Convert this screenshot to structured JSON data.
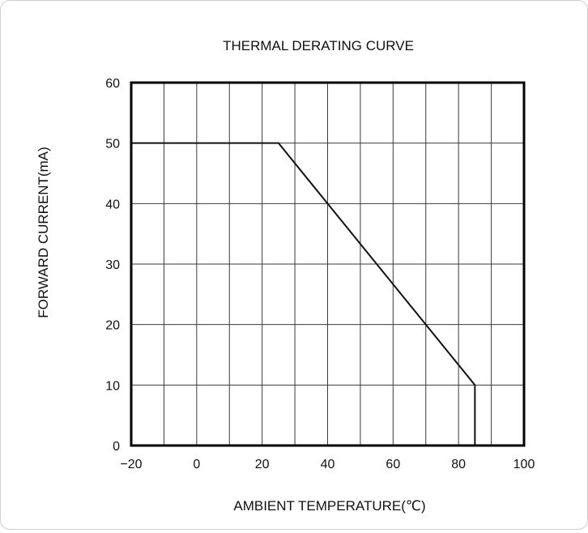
{
  "chart_data": {
    "type": "line",
    "title": "THERMAL DERATING CURVE",
    "xlabel": "AMBIENT TEMPERATURE(℃)",
    "ylabel": "FORWARD CURRENT(mA)",
    "xlim": [
      -20,
      100
    ],
    "ylim": [
      0,
      60
    ],
    "x_ticks": [
      -20,
      0,
      20,
      40,
      60,
      80,
      100
    ],
    "x_tick_labels": [
      "−20",
      "0",
      "20",
      "40",
      "60",
      "80",
      "100"
    ],
    "y_ticks": [
      0,
      10,
      20,
      30,
      40,
      50,
      60
    ],
    "y_tick_labels": [
      "0",
      "10",
      "20",
      "30",
      "40",
      "50",
      "60"
    ],
    "x_grid_step": 10,
    "y_grid_step": 10,
    "grid": true,
    "legend": "none",
    "series": [
      {
        "points": [
          {
            "x": -20,
            "y": 50
          },
          {
            "x": 25,
            "y": 50
          },
          {
            "x": 85,
            "y": 10
          },
          {
            "x": 85,
            "y": 0
          }
        ],
        "color": "#111111"
      }
    ]
  }
}
